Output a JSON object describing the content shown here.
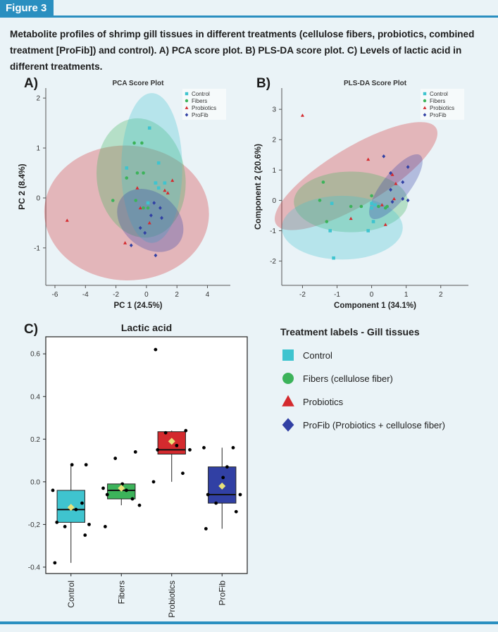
{
  "figure_label": "Figure 3",
  "caption": "Metabolite profiles of shrimp gill tissues in different treatments (cellulose fibers, probiotics, combined treatment [ProFib]) and control). A) PCA score plot. B) PLS-DA score plot. C) Levels of lactic acid in different treatments.",
  "panel_letters": {
    "a": "A)",
    "b": "B)",
    "c": "C)"
  },
  "colors": {
    "Control": "#3fc4cf",
    "Fibers": "#3cb35a",
    "Probiotics": "#d42a2e",
    "ProFib": "#3140a4",
    "accent": "#2a8fc0"
  },
  "treatment_legend": {
    "title": "Treatment labels - Gill tissues",
    "items": [
      {
        "label": "Control",
        "icon": "square-icon"
      },
      {
        "label": "Fibers (cellulose fiber)",
        "icon": "circle-icon"
      },
      {
        "label": "Probiotics",
        "icon": "triangle-icon"
      },
      {
        "label": "ProFib (Probiotics + cellulose fiber)",
        "icon": "diamond-icon"
      }
    ]
  },
  "chart_data": [
    {
      "type": "scatter",
      "title": "PCA Score Plot",
      "xlabel": "PC 1 (24.5%)",
      "ylabel": "PC 2 (8.4%)",
      "xlim": [
        -6.6,
        5.5
      ],
      "ylim": [
        -1.75,
        2.2
      ],
      "xticks": [
        -6,
        -4,
        -2,
        0,
        2,
        4
      ],
      "yticks": [
        -1,
        0,
        1,
        2
      ],
      "legend": [
        "Control",
        "Fibers",
        "Probiotics",
        "ProFib"
      ],
      "legend_position": "top-right",
      "series": [
        {
          "name": "Control",
          "points": [
            [
              0.2,
              1.4
            ],
            [
              0.8,
              0.7
            ],
            [
              -1.3,
              0.6
            ],
            [
              0.6,
              0.3
            ],
            [
              0.8,
              0.2
            ],
            [
              0.1,
              -0.1
            ],
            [
              1.2,
              0.3
            ],
            [
              0.6,
              0.3
            ]
          ]
        },
        {
          "name": "Fibers",
          "points": [
            [
              -0.8,
              1.1
            ],
            [
              -0.3,
              1.1
            ],
            [
              -1.3,
              0.4
            ],
            [
              -0.6,
              0.5
            ],
            [
              -0.2,
              0.5
            ],
            [
              -2.2,
              -0.05
            ],
            [
              -0.7,
              -0.05
            ],
            [
              0.1,
              -0.2
            ],
            [
              -0.2,
              -0.2
            ]
          ]
        },
        {
          "name": "Probiotics",
          "points": [
            [
              -5.2,
              -0.45
            ],
            [
              -1.4,
              -0.9
            ],
            [
              -0.6,
              0.2
            ],
            [
              -0.4,
              -0.2
            ],
            [
              1.2,
              0.15
            ],
            [
              1.7,
              0.35
            ],
            [
              1.4,
              0.1
            ],
            [
              0.2,
              -0.5
            ]
          ]
        },
        {
          "name": "ProFib",
          "points": [
            [
              -1.0,
              -0.95
            ],
            [
              -0.4,
              -0.6
            ],
            [
              0.5,
              -0.1
            ],
            [
              0.9,
              -0.2
            ],
            [
              0.3,
              -0.35
            ],
            [
              1.0,
              -0.4
            ],
            [
              0.6,
              -1.15
            ],
            [
              -0.1,
              -0.7
            ]
          ]
        }
      ],
      "ellipses": [
        {
          "name": "Control",
          "cx": 0.35,
          "cy": 0.6,
          "rx": 2.0,
          "ry": 1.5,
          "angle": 0
        },
        {
          "name": "Fibers",
          "cx": -0.35,
          "cy": 0.4,
          "rx": 2.9,
          "ry": 1.2,
          "angle": -8
        },
        {
          "name": "Probiotics",
          "cx": -1.3,
          "cy": -0.3,
          "rx": 5.4,
          "ry": 1.35,
          "angle": 2
        },
        {
          "name": "ProFib",
          "cx": 0.25,
          "cy": -0.45,
          "rx": 2.4,
          "ry": 0.55,
          "angle": 40
        }
      ]
    },
    {
      "type": "scatter",
      "title": "PLS-DA Score Plot",
      "xlabel": "Component 1 (34.1%)",
      "ylabel": "Component 2 (20.6%)",
      "xlim": [
        -2.6,
        2.8
      ],
      "ylim": [
        -2.8,
        3.7
      ],
      "xticks": [
        -2,
        -1,
        0,
        1,
        2
      ],
      "yticks": [
        -2,
        -1,
        0,
        1,
        2,
        3
      ],
      "legend": [
        "Control",
        "Fibers",
        "Probiotics",
        "ProFib"
      ],
      "legend_position": "top-right",
      "series": [
        {
          "name": "Control",
          "points": [
            [
              -1.1,
              -1.9
            ],
            [
              -1.2,
              -1.0
            ],
            [
              -1.15,
              -0.1
            ],
            [
              0.0,
              -0.1
            ],
            [
              -0.1,
              -1.0
            ],
            [
              0.05,
              -0.7
            ],
            [
              0.1,
              -0.15
            ],
            [
              0.0,
              -0.25
            ]
          ]
        },
        {
          "name": "Fibers",
          "points": [
            [
              -1.4,
              0.6
            ],
            [
              -1.5,
              0.0
            ],
            [
              -1.3,
              -0.7
            ],
            [
              -0.6,
              -0.2
            ],
            [
              -0.3,
              -0.2
            ],
            [
              0.0,
              0.15
            ],
            [
              0.2,
              -0.2
            ],
            [
              0.4,
              -0.25
            ],
            [
              0.45,
              -0.2
            ]
          ]
        },
        {
          "name": "Probiotics",
          "points": [
            [
              -2.0,
              2.8
            ],
            [
              -0.1,
              1.35
            ],
            [
              -0.6,
              -0.6
            ],
            [
              0.6,
              0.85
            ],
            [
              0.7,
              0.55
            ],
            [
              0.4,
              -0.8
            ],
            [
              0.65,
              0.05
            ],
            [
              0.3,
              -0.15
            ]
          ]
        },
        {
          "name": "ProFib",
          "points": [
            [
              0.35,
              1.45
            ],
            [
              0.55,
              0.9
            ],
            [
              0.55,
              0.35
            ],
            [
              1.05,
              1.1
            ],
            [
              0.9,
              0.6
            ],
            [
              0.9,
              0.05
            ],
            [
              1.05,
              0.0
            ],
            [
              0.6,
              -0.05
            ]
          ]
        }
      ],
      "ellipses": [
        {
          "name": "Control",
          "cx": -0.85,
          "cy": -0.9,
          "rx": 1.75,
          "ry": 1.05,
          "angle": 0
        },
        {
          "name": "Fibers",
          "cx": -0.6,
          "cy": -0.05,
          "rx": 1.65,
          "ry": 1.0,
          "angle": 0
        },
        {
          "name": "Probiotics",
          "cx": -0.45,
          "cy": 0.8,
          "rx": 2.7,
          "ry": 0.95,
          "angle": -31
        },
        {
          "name": "ProFib",
          "cx": 0.7,
          "cy": 0.45,
          "rx": 1.15,
          "ry": 0.45,
          "angle": -52
        }
      ]
    },
    {
      "type": "box",
      "title": "Lactic acid",
      "xlabel": "",
      "ylabel": "",
      "ylim": [
        -0.43,
        0.68
      ],
      "yticks": [
        0.6,
        0.4,
        0.2,
        0.0,
        -0.2,
        -0.4
      ],
      "ytick_labels": [
        "0.6",
        "0.4",
        "0.2",
        "0.0",
        "-0,2",
        "-0.4"
      ],
      "categories": [
        "Control",
        "Fibers",
        "Probiotics",
        "ProFib"
      ],
      "boxes": [
        {
          "category": "Control",
          "whisker_low": -0.38,
          "q1": -0.19,
          "median": -0.13,
          "q3": -0.04,
          "whisker_high": 0.08,
          "mean": -0.12
        },
        {
          "category": "Fibers",
          "whisker_low": -0.11,
          "q1": -0.08,
          "median": -0.04,
          "q3": -0.01,
          "whisker_high": -0.01,
          "mean": -0.03
        },
        {
          "category": "Probiotics",
          "whisker_low": 0.0,
          "q1": 0.13,
          "median": 0.15,
          "q3": 0.235,
          "whisker_high": 0.24,
          "mean": 0.19
        },
        {
          "category": "ProFib",
          "whisker_low": -0.22,
          "q1": -0.1,
          "median": -0.06,
          "q3": 0.07,
          "whisker_high": 0.16,
          "mean": -0.02
        }
      ],
      "points": [
        {
          "category": "Control",
          "values": [
            -0.38,
            -0.25,
            -0.21,
            -0.2,
            -0.19,
            -0.13,
            -0.1,
            -0.04,
            0.08,
            0.08
          ]
        },
        {
          "category": "Fibers",
          "values": [
            -0.21,
            0.14,
            0.11,
            -0.11,
            -0.06,
            -0.04,
            -0.08,
            -0.03,
            -0.01
          ]
        },
        {
          "category": "Probiotics",
          "values": [
            0.62,
            0.24,
            0.23,
            0.15,
            0.15,
            0.17,
            0.04,
            0.0
          ]
        },
        {
          "category": "ProFib",
          "values": [
            -0.22,
            -0.14,
            -0.1,
            -0.06,
            -0.06,
            0.07,
            0.16,
            0.16,
            0.02
          ]
        }
      ]
    }
  ]
}
